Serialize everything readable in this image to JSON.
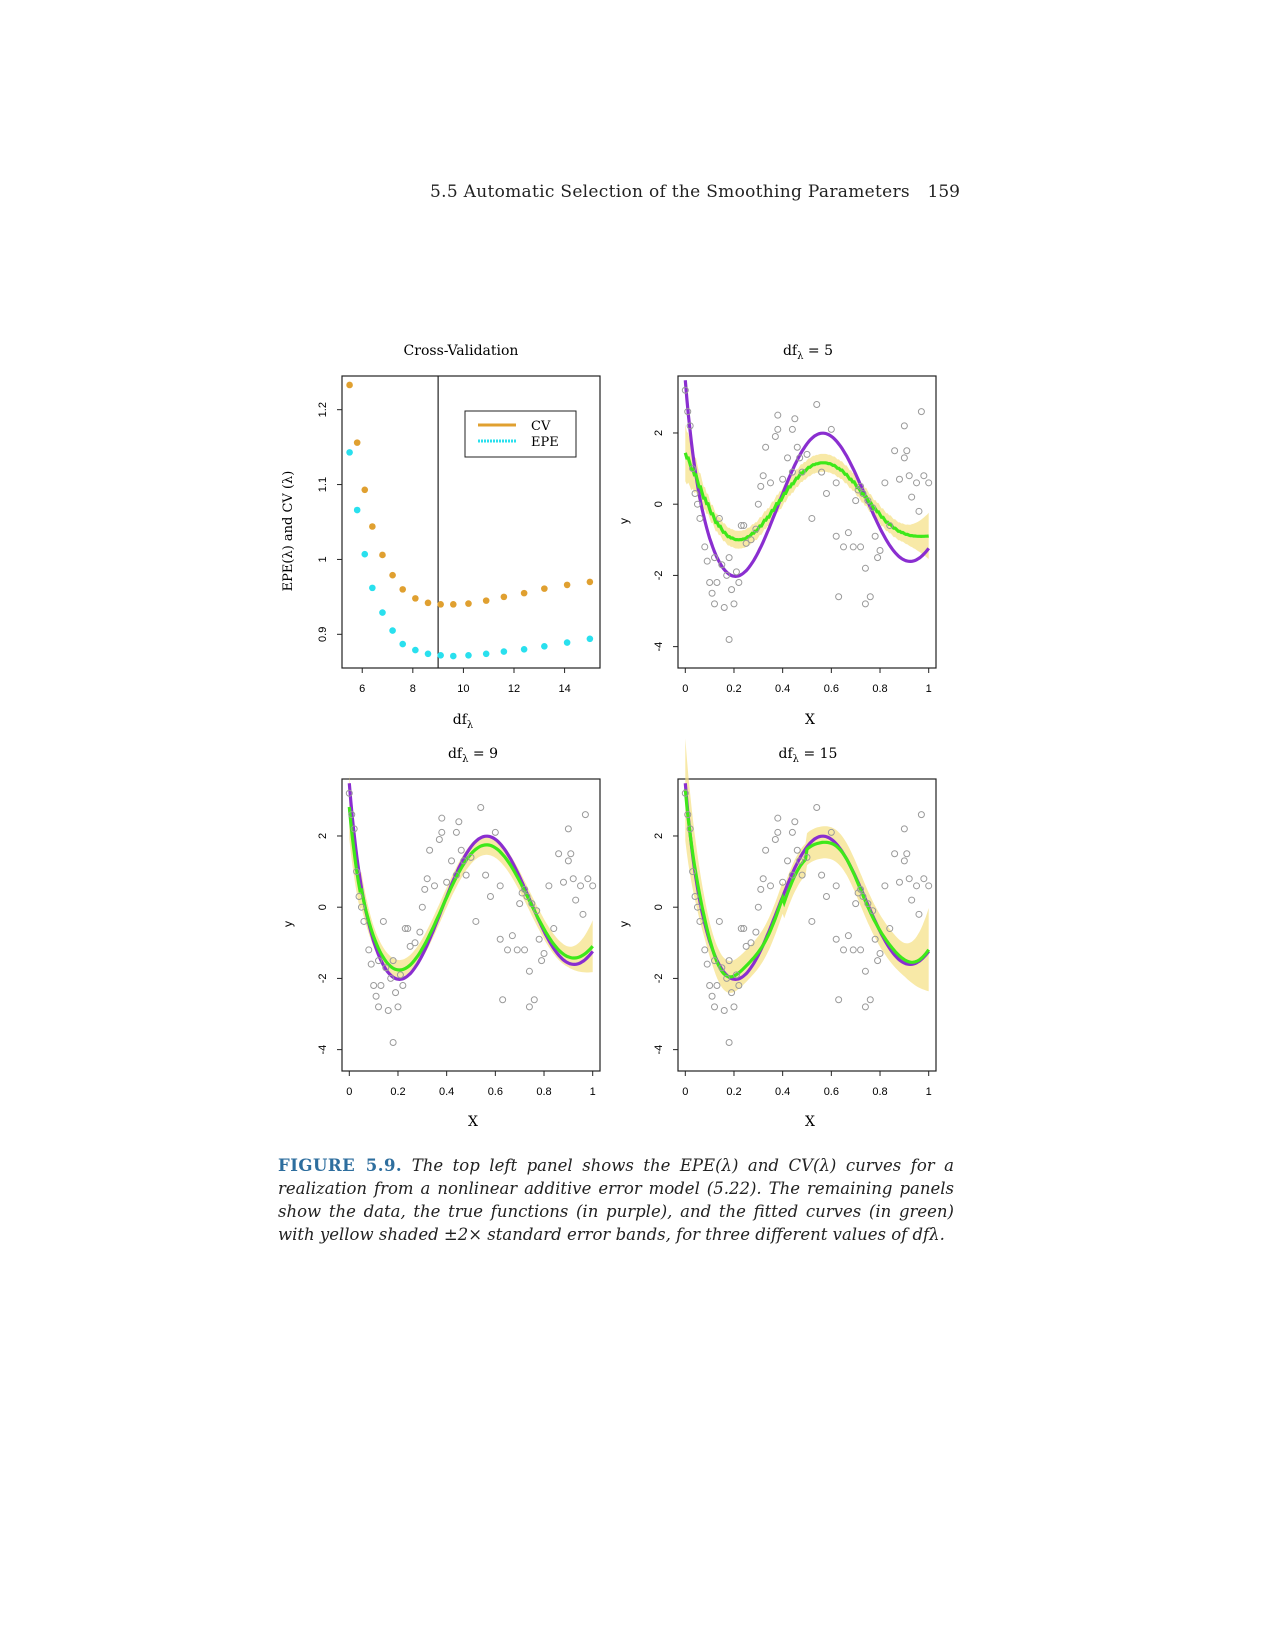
{
  "header": {
    "running_head": "5.5 Automatic Selection of the Smoothing Parameters",
    "page_number": "159"
  },
  "panels": [
    {
      "title": "Cross-Validation",
      "ylabel": "EPE(λ) and CV (λ)",
      "xlabel": "df",
      "xlabel_sub": "λ"
    },
    {
      "title_main": "df",
      "title_sub": "λ",
      "title_rest": " = 5",
      "ylabel": "y",
      "xlabel": "X"
    },
    {
      "title_main": "df",
      "title_sub": "λ",
      "title_rest": " = 9",
      "ylabel": "y",
      "xlabel": "X"
    },
    {
      "title_main": "df",
      "title_sub": "λ",
      "title_rest": " = 15",
      "ylabel": "y",
      "xlabel": "X"
    }
  ],
  "colors": {
    "cv": "#e0a030",
    "epe": "#29e0ee",
    "truth": "#8a2ed0",
    "fit": "#3ee81a",
    "band": "#f5e28a",
    "points": "#9a9a9a"
  },
  "chart_data": [
    {
      "type": "scatter",
      "title": "Cross-Validation",
      "xlabel": "dfλ",
      "ylabel": "EPE(λ) and CV (λ)",
      "xlim": [
        5.2,
        15.4
      ],
      "ylim": [
        0.855,
        1.245
      ],
      "xticks": [
        6,
        8,
        10,
        12,
        14
      ],
      "yticks": [
        0.9,
        1.0,
        1.1,
        1.2
      ],
      "vline": 9,
      "legend": "top-right",
      "series": [
        {
          "name": "CV",
          "x": [
            5.5,
            5.8,
            6.1,
            6.4,
            6.8,
            7.2,
            7.6,
            8.1,
            8.6,
            9.1,
            9.6,
            10.2,
            10.9,
            11.6,
            12.4,
            13.2,
            14.1,
            15.0
          ],
          "values": [
            1.233,
            1.156,
            1.093,
            1.044,
            1.006,
            0.979,
            0.96,
            0.948,
            0.942,
            0.94,
            0.94,
            0.941,
            0.945,
            0.95,
            0.955,
            0.961,
            0.966,
            0.97
          ]
        },
        {
          "name": "EPE",
          "x": [
            5.5,
            5.8,
            6.1,
            6.4,
            6.8,
            7.2,
            7.6,
            8.1,
            8.6,
            9.1,
            9.6,
            10.2,
            10.9,
            11.6,
            12.4,
            13.2,
            14.1,
            15.0
          ],
          "values": [
            1.143,
            1.066,
            1.007,
            0.962,
            0.929,
            0.905,
            0.887,
            0.879,
            0.874,
            0.872,
            0.871,
            0.872,
            0.874,
            0.877,
            0.88,
            0.884,
            0.889,
            0.894
          ]
        }
      ]
    },
    {
      "type": "scatter",
      "title": "dfλ = 5",
      "xlabel": "X",
      "ylabel": "y",
      "xlim": [
        -0.03,
        1.03
      ],
      "ylim": [
        -4.6,
        3.6
      ],
      "xticks": [
        0.0,
        0.2,
        0.4,
        0.6,
        0.8,
        1.0
      ],
      "yticks": [
        -4,
        -2,
        0,
        2
      ],
      "points": [
        [
          0.0,
          3.2
        ],
        [
          0.01,
          2.6
        ],
        [
          0.02,
          2.2
        ],
        [
          0.03,
          1.0
        ],
        [
          0.04,
          0.3
        ],
        [
          0.05,
          0.0
        ],
        [
          0.06,
          -0.4
        ],
        [
          0.08,
          -1.2
        ],
        [
          0.09,
          -1.6
        ],
        [
          0.1,
          -2.2
        ],
        [
          0.11,
          -2.5
        ],
        [
          0.12,
          -2.8
        ],
        [
          0.12,
          -1.5
        ],
        [
          0.13,
          -2.2
        ],
        [
          0.14,
          -0.4
        ],
        [
          0.15,
          -1.7
        ],
        [
          0.16,
          -2.9
        ],
        [
          0.17,
          -2.0
        ],
        [
          0.18,
          -1.5
        ],
        [
          0.18,
          -3.8
        ],
        [
          0.19,
          -2.4
        ],
        [
          0.2,
          -2.8
        ],
        [
          0.21,
          -1.9
        ],
        [
          0.22,
          -2.2
        ],
        [
          0.23,
          -0.6
        ],
        [
          0.24,
          -0.6
        ],
        [
          0.25,
          -1.1
        ],
        [
          0.27,
          -1.0
        ],
        [
          0.29,
          -0.7
        ],
        [
          0.3,
          0.0
        ],
        [
          0.31,
          0.5
        ],
        [
          0.32,
          0.8
        ],
        [
          0.33,
          1.6
        ],
        [
          0.35,
          0.6
        ],
        [
          0.37,
          1.9
        ],
        [
          0.38,
          2.1
        ],
        [
          0.38,
          2.5
        ],
        [
          0.4,
          0.7
        ],
        [
          0.42,
          1.3
        ],
        [
          0.44,
          0.9
        ],
        [
          0.44,
          2.1
        ],
        [
          0.45,
          2.4
        ],
        [
          0.46,
          1.6
        ],
        [
          0.47,
          1.3
        ],
        [
          0.48,
          0.9
        ],
        [
          0.5,
          1.4
        ],
        [
          0.52,
          -0.4
        ],
        [
          0.54,
          2.8
        ],
        [
          0.56,
          0.9
        ],
        [
          0.58,
          0.3
        ],
        [
          0.6,
          2.1
        ],
        [
          0.62,
          -0.9
        ],
        [
          0.62,
          0.6
        ],
        [
          0.63,
          -2.6
        ],
        [
          0.65,
          -1.2
        ],
        [
          0.67,
          -0.8
        ],
        [
          0.69,
          -1.2
        ],
        [
          0.7,
          0.1
        ],
        [
          0.71,
          0.4
        ],
        [
          0.72,
          0.5
        ],
        [
          0.72,
          -1.2
        ],
        [
          0.73,
          0.3
        ],
        [
          0.74,
          -1.8
        ],
        [
          0.74,
          -2.8
        ],
        [
          0.75,
          0.1
        ],
        [
          0.76,
          -2.6
        ],
        [
          0.77,
          -0.1
        ],
        [
          0.78,
          -0.9
        ],
        [
          0.79,
          -1.5
        ],
        [
          0.8,
          -1.3
        ],
        [
          0.82,
          0.6
        ],
        [
          0.84,
          -0.6
        ],
        [
          0.86,
          1.5
        ],
        [
          0.88,
          0.7
        ],
        [
          0.9,
          1.3
        ],
        [
          0.9,
          2.2
        ],
        [
          0.91,
          1.5
        ],
        [
          0.92,
          0.8
        ],
        [
          0.93,
          0.2
        ],
        [
          0.95,
          0.6
        ],
        [
          0.96,
          -0.2
        ],
        [
          0.97,
          2.6
        ],
        [
          0.98,
          0.8
        ],
        [
          1.0,
          0.6
        ]
      ]
    },
    {
      "type": "scatter",
      "title": "dfλ = 9",
      "xlabel": "X",
      "ylabel": "y",
      "xlim": [
        -0.03,
        1.03
      ],
      "ylim": [
        -4.6,
        3.6
      ],
      "xticks": [
        0.0,
        0.2,
        0.4,
        0.6,
        0.8,
        1.0
      ],
      "yticks": [
        -4,
        -2,
        0,
        2
      ]
    },
    {
      "type": "scatter",
      "title": "dfλ = 15",
      "xlabel": "X",
      "ylabel": "y",
      "xlim": [
        -0.03,
        1.03
      ],
      "ylim": [
        -4.6,
        3.6
      ],
      "xticks": [
        0.0,
        0.2,
        0.4,
        0.6,
        0.8,
        1.0
      ],
      "yticks": [
        -4,
        -2,
        0,
        2
      ]
    }
  ],
  "caption": {
    "label": "FIGURE 5.9.",
    "text": "The top left panel shows the EPE(λ) and CV(λ) curves for a realization from a nonlinear additive error model (5.22). The remaining panels show the data, the true functions (in purple), and the fitted curves (in green) with yellow shaded ±2× standard error bands, for three different values of dfλ."
  }
}
